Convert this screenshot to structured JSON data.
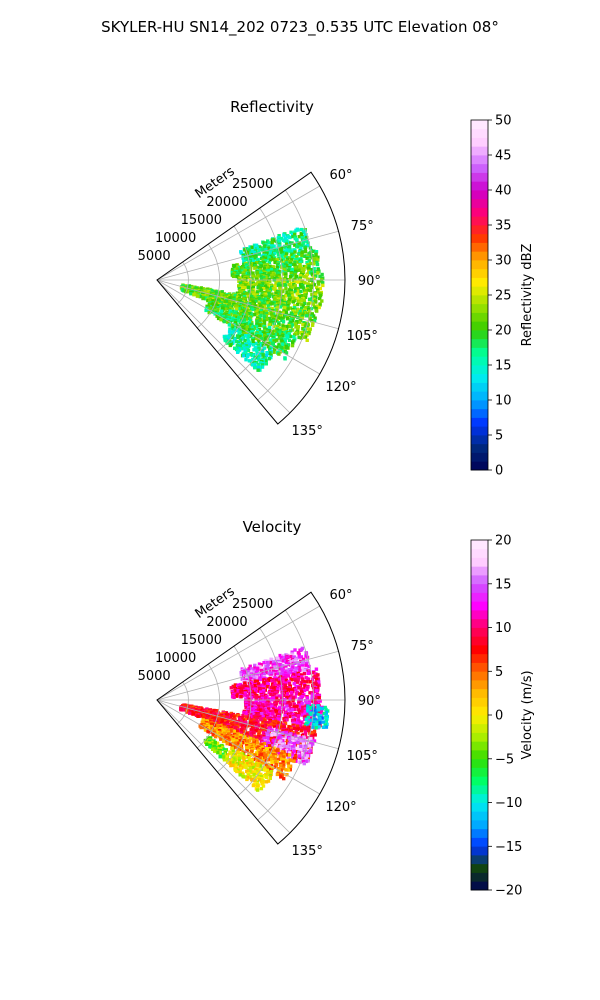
{
  "suptitle": "SKYLER-HU  SN14_202  0723_0.535 UTC Elevation 08°",
  "chart_data": [
    {
      "type": "heatmap",
      "projection": "polar-sector",
      "title": "Reflectivity",
      "radial_label": "Meters",
      "azimuth_range_deg": [
        55,
        140
      ],
      "r_max": 30000,
      "r_ticks": [
        5000,
        10000,
        15000,
        20000,
        25000
      ],
      "r_tick_labels": [
        "5000",
        "10000",
        "15000",
        "20000",
        "25000"
      ],
      "theta_ticks": [
        60,
        75,
        90,
        105,
        120,
        135
      ],
      "theta_tick_labels": [
        "60°",
        "75°",
        "90°",
        "105°",
        "120°",
        "135°"
      ],
      "grid": true,
      "colorbar": {
        "label": "Reflectivity dBZ",
        "range": [
          0,
          50
        ],
        "ticks": [
          0,
          5,
          10,
          15,
          20,
          25,
          30,
          35,
          40,
          45,
          50
        ],
        "tick_labels": [
          "0",
          "5",
          "10",
          "15",
          "20",
          "25",
          "30",
          "35",
          "40",
          "45",
          "50"
        ],
        "stops": [
          "#000055",
          "#002a80",
          "#0033ff",
          "#00aaff",
          "#00eeee",
          "#00ff99",
          "#33cc00",
          "#99e000",
          "#ffee00",
          "#ffaa00",
          "#ff3300",
          "#ff0077",
          "#cc00cc",
          "#cc66ff",
          "#ffccff",
          "#ffeeff"
        ]
      },
      "echo_regions": [
        {
          "az": [
            70,
            79
          ],
          "r": [
            14000,
            25000
          ],
          "value": 17
        },
        {
          "az": [
            79,
            88
          ],
          "r": [
            12000,
            26000
          ],
          "value": 20
        },
        {
          "az": [
            88,
            100
          ],
          "r": [
            13000,
            26500
          ],
          "value": 22
        },
        {
          "az": [
            100,
            112
          ],
          "r": [
            4000,
            26000
          ],
          "value": 21
        },
        {
          "az": [
            112,
            122
          ],
          "r": [
            9000,
            24000
          ],
          "value": 19
        },
        {
          "az": [
            122,
            132
          ],
          "r": [
            14000,
            22000
          ],
          "value": 16
        }
      ]
    },
    {
      "type": "heatmap",
      "projection": "polar-sector",
      "title": "Velocity",
      "radial_label": "Meters",
      "azimuth_range_deg": [
        55,
        140
      ],
      "r_max": 30000,
      "r_ticks": [
        5000,
        10000,
        15000,
        20000,
        25000
      ],
      "r_tick_labels": [
        "5000",
        "10000",
        "15000",
        "20000",
        "25000"
      ],
      "theta_ticks": [
        60,
        75,
        90,
        105,
        120,
        135
      ],
      "theta_tick_labels": [
        "60°",
        "75°",
        "90°",
        "105°",
        "120°",
        "135°"
      ],
      "grid": true,
      "colorbar": {
        "label": "Velocity (m/s)",
        "range": [
          -20,
          20
        ],
        "ticks": [
          -20,
          -15,
          -10,
          -5,
          0,
          5,
          10,
          15,
          20
        ],
        "tick_labels": [
          "−20",
          "−15",
          "−10",
          "−5",
          "0",
          "5",
          "10",
          "15",
          "20"
        ],
        "stops": [
          "#000055",
          "#114411",
          "#0033ff",
          "#00aaff",
          "#00eeee",
          "#00ff66",
          "#33dd00",
          "#aaee00",
          "#ffee00",
          "#ffbb00",
          "#ff6600",
          "#ff0000",
          "#ff0066",
          "#ff00ff",
          "#cc55ff",
          "#ffccff",
          "#ffeeff"
        ]
      },
      "echo_regions": [
        {
          "az": [
            70,
            79
          ],
          "r": [
            14000,
            25000
          ],
          "value": 14
        },
        {
          "az": [
            79,
            88
          ],
          "r": [
            12000,
            26000
          ],
          "value": 10
        },
        {
          "az": [
            88,
            100
          ],
          "r": [
            14000,
            26500
          ],
          "value": 11
        },
        {
          "az": [
            92,
            100
          ],
          "r": [
            24000,
            27500
          ],
          "value": -11
        },
        {
          "az": [
            100,
            112
          ],
          "r": [
            4000,
            26000
          ],
          "value": 8
        },
        {
          "az": [
            104,
            114
          ],
          "r": [
            18000,
            26000
          ],
          "value": 15
        },
        {
          "az": [
            112,
            122
          ],
          "r": [
            8000,
            24000
          ],
          "value": 4
        },
        {
          "az": [
            122,
            132
          ],
          "r": [
            14000,
            22000
          ],
          "value": 0
        },
        {
          "az": [
            125,
            132
          ],
          "r": [
            10000,
            14000
          ],
          "value": -4
        }
      ]
    }
  ]
}
